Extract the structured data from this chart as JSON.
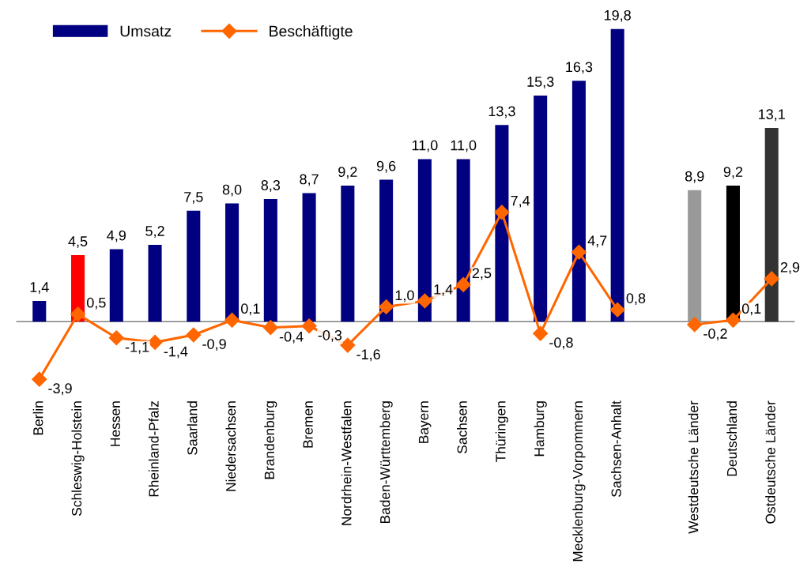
{
  "chart_data": {
    "type": "bar",
    "categories": [
      "Berlin",
      "Schleswig-Holstein",
      "Hessen",
      "Rheinland-Pfalz",
      "Saarland",
      "Niedersachsen",
      "Brandenburg",
      "Bremen",
      "Nordrhein-Westfalen",
      "Baden-Württemberg",
      "Bayern",
      "Sachsen",
      "Thüringen",
      "Hamburg",
      "Mecklenburg-Vorpommern",
      "Sachsen-Anhalt",
      null,
      "Westdeutsche Länder",
      "Deutschland",
      "Ostdeutsche Länder"
    ],
    "series": [
      {
        "name": "Umsatz",
        "color": "#000080",
        "colors": [
          "#000080",
          "#ff0000",
          "#000080",
          "#000080",
          "#000080",
          "#000080",
          "#000080",
          "#000080",
          "#000080",
          "#000080",
          "#000080",
          "#000080",
          "#000080",
          "#000080",
          "#000080",
          "#000080",
          null,
          "#999999",
          "#000000",
          "#333333"
        ],
        "values": [
          1.4,
          4.5,
          4.9,
          5.2,
          7.5,
          8.0,
          8.3,
          8.7,
          9.2,
          9.6,
          11.0,
          11.0,
          13.3,
          15.3,
          16.3,
          19.8,
          null,
          8.9,
          9.2,
          13.1
        ],
        "value_labels": [
          "1,4",
          "4,5",
          "4,9",
          "5,2",
          "7,5",
          "8,0",
          "8,3",
          "8,7",
          "9,2",
          "9,6",
          "11,0",
          "11,0",
          "13,3",
          "15,3",
          "16,3",
          "19,8",
          null,
          "8,9",
          "9,2",
          "13,1"
        ]
      },
      {
        "name": "Beschäftigte",
        "type": "line",
        "color": "#ff6600",
        "marker": "diamond",
        "values": [
          -3.9,
          0.5,
          -1.1,
          -1.4,
          -0.9,
          0.1,
          -0.4,
          -0.3,
          -1.6,
          1.0,
          1.4,
          2.5,
          7.4,
          -0.8,
          4.7,
          0.8,
          null,
          -0.2,
          0.1,
          2.9
        ],
        "value_labels": [
          "-3,9",
          "0,5",
          "-1,1",
          "-1,4",
          "-0,9",
          "0,1",
          "-0,4",
          "-0,3",
          "-1,6",
          "1,0",
          "1,4",
          "2,5",
          "7,4",
          "-0,8",
          "4,7",
          "0,8",
          null,
          "-0,2",
          "0,1",
          "2,9"
        ]
      }
    ],
    "tick_labels": "x",
    "legend": "top left",
    "grid": false,
    "ref_lines": [
      {
        "axis": "y",
        "value": 0,
        "color": "#808080"
      }
    ]
  }
}
